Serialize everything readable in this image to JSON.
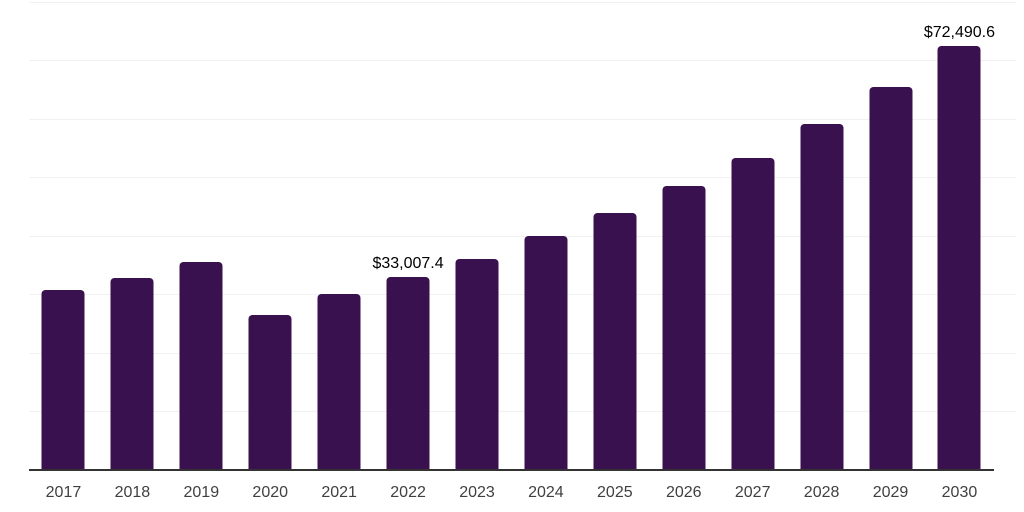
{
  "chart_data": {
    "type": "bar",
    "title": "",
    "xlabel": "",
    "ylabel": "",
    "categories": [
      "2017",
      "2018",
      "2019",
      "2020",
      "2021",
      "2022",
      "2023",
      "2024",
      "2025",
      "2026",
      "2027",
      "2028",
      "2029",
      "2030"
    ],
    "values": [
      30800,
      32900,
      35500,
      26500,
      30100,
      33007.4,
      36100,
      40000,
      44000,
      48500,
      53400,
      59100,
      65400,
      72490.6
    ],
    "data_labels": {
      "2022": "$33,007.4",
      "2030": "$72,490.6"
    },
    "ylim": [
      0,
      80000
    ],
    "gridline_interval": 10000,
    "grid": "horizontal",
    "legend": "none",
    "colors": {
      "bar": "#38114E",
      "gridline": "#f1f1f1",
      "axis_line": "#333333",
      "x_label": "#404040",
      "data_label": "#000000",
      "background": "#ffffff"
    }
  }
}
